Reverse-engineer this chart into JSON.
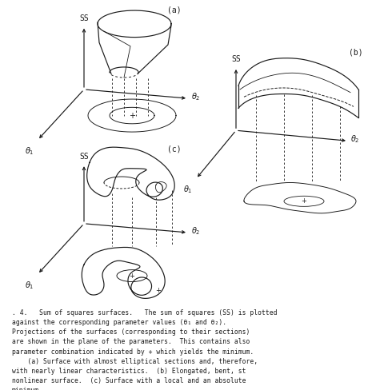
{
  "bg_color": "#ffffff",
  "ink_color": "#1a1a1a",
  "caption_lines": [
    ". 4.   Sum of squares surfaces.   The sum of squares (SS) is plotted",
    "against the corresponding parameter values (θ₁ and θ₂).",
    "Projections of the surfaces (corresponding to their sections)",
    "are shown in the plane of the parameters.  This contains also",
    "parameter combination indicated by + which yields the minimum.",
    "    (a) Surface with almost elliptical sections and, therefore,",
    "with nearly linear characteristics.  (b) Elongated, bent, st",
    "nonlinear surface.  (c) Surface with a local and an absolute",
    "minimum."
  ]
}
